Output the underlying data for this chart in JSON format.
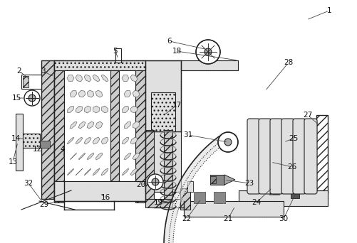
{
  "figsize": [
    5.02,
    3.42
  ],
  "dpi": 100,
  "lc": "#222222",
  "gray1": "#cccccc",
  "gray2": "#e0e0e0",
  "gray3": "#aaaaaa",
  "gray4": "#888888",
  "dark": "#555555",
  "white": "#ffffff"
}
